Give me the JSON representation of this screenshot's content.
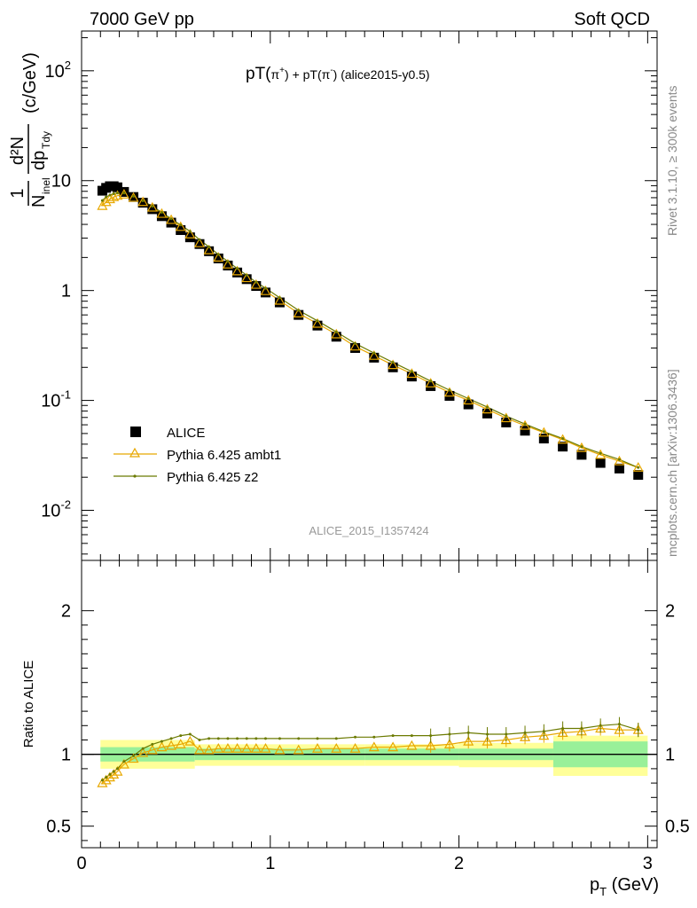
{
  "header": {
    "left": "7000 GeV pp",
    "right": "Soft QCD"
  },
  "side_text": {
    "rivet": "Rivet 3.1.10, ≥ 300k events",
    "mcplots": "mcplots.cern.ch [arXiv:1306.3436]"
  },
  "watermark": "ALICE_2015_I1357424",
  "colors": {
    "alice": "#000000",
    "ambt1": "#e8a800",
    "z2": "#6b7a00",
    "band_stat": "#99f099",
    "band_total": "#ffff99"
  },
  "chart_data": [
    {
      "type": "scatter",
      "title_parts": {
        "pre": "pT(",
        "p1": "π",
        "s1": "+",
        "mid1": ") + pT(",
        "p2": "π",
        "s2": "-",
        "post": ") (alice2015-y0.5)"
      },
      "ylabel": {
        "frac1_num": "1",
        "frac1_den": "N",
        "den_sub": "inel",
        "frac2_num": "d²N",
        "frac2_den": "dp",
        "den2_sub": "Tdy",
        "unit": "(c/GeV)"
      },
      "yscale": "log",
      "ylim": [
        0.0035,
        230
      ],
      "xlim": [
        0,
        3.05
      ],
      "ytick_labels": [
        {
          "base": "10",
          "exp": "-2",
          "value": 0.01
        },
        {
          "base": "10",
          "exp": "-1",
          "value": 0.1
        },
        {
          "base": "1",
          "exp": "",
          "value": 1
        },
        {
          "base": "10",
          "exp": "",
          "value": 10
        },
        {
          "base": "10",
          "exp": "2",
          "value": 100
        }
      ],
      "legend": {
        "placement": "bottom-left",
        "entries": [
          "ALICE",
          "Pythia 6.425 ambt1",
          "Pythia 6.425 z2"
        ]
      },
      "series": [
        {
          "name": "ALICE",
          "marker": "square",
          "x": [
            0.11,
            0.13,
            0.15,
            0.17,
            0.19,
            0.225,
            0.275,
            0.325,
            0.375,
            0.425,
            0.475,
            0.525,
            0.575,
            0.625,
            0.675,
            0.725,
            0.775,
            0.825,
            0.875,
            0.925,
            0.975,
            1.05,
            1.15,
            1.25,
            1.35,
            1.45,
            1.55,
            1.65,
            1.75,
            1.85,
            1.95,
            2.05,
            2.15,
            2.25,
            2.35,
            2.45,
            2.55,
            2.65,
            2.75,
            2.85,
            2.95
          ],
          "y": [
            8.1,
            8.6,
            8.9,
            8.9,
            8.7,
            7.9,
            7.1,
            6.3,
            5.5,
            4.75,
            4.15,
            3.55,
            3.05,
            2.65,
            2.28,
            1.96,
            1.69,
            1.46,
            1.27,
            1.1,
            0.96,
            0.78,
            0.6,
            0.48,
            0.38,
            0.3,
            0.245,
            0.2,
            0.165,
            0.135,
            0.11,
            0.092,
            0.076,
            0.063,
            0.053,
            0.045,
            0.038,
            0.032,
            0.027,
            0.024,
            0.021
          ]
        },
        {
          "name": "Pythia 6.425 ambt1",
          "marker": "triangle",
          "x": [
            0.11,
            0.13,
            0.15,
            0.17,
            0.19,
            0.225,
            0.275,
            0.325,
            0.375,
            0.425,
            0.475,
            0.525,
            0.575,
            0.625,
            0.675,
            0.725,
            0.775,
            0.825,
            0.875,
            0.925,
            0.975,
            1.05,
            1.15,
            1.25,
            1.35,
            1.45,
            1.55,
            1.65,
            1.75,
            1.85,
            1.95,
            2.05,
            2.15,
            2.25,
            2.35,
            2.45,
            2.55,
            2.65,
            2.75,
            2.85,
            2.95
          ],
          "y": [
            5.9,
            6.4,
            6.8,
            7.1,
            7.3,
            7.5,
            7.0,
            6.4,
            5.7,
            5.0,
            4.4,
            3.8,
            3.25,
            2.7,
            2.33,
            2.0,
            1.73,
            1.5,
            1.3,
            1.13,
            0.99,
            0.81,
            0.62,
            0.5,
            0.4,
            0.31,
            0.255,
            0.21,
            0.175,
            0.143,
            0.118,
            0.1,
            0.083,
            0.069,
            0.059,
            0.051,
            0.044,
            0.037,
            0.032,
            0.028,
            0.0245
          ]
        },
        {
          "name": "Pythia 6.425 z2",
          "marker": "dot",
          "x": [
            0.11,
            0.13,
            0.15,
            0.17,
            0.19,
            0.225,
            0.275,
            0.325,
            0.375,
            0.425,
            0.475,
            0.525,
            0.575,
            0.625,
            0.675,
            0.725,
            0.775,
            0.825,
            0.875,
            0.925,
            0.975,
            1.05,
            1.15,
            1.25,
            1.35,
            1.45,
            1.55,
            1.65,
            1.75,
            1.85,
            1.95,
            2.05,
            2.15,
            2.25,
            2.35,
            2.45,
            2.55,
            2.65,
            2.75,
            2.85,
            2.95
          ],
          "y": [
            6.6,
            7.1,
            7.4,
            7.6,
            7.7,
            7.7,
            7.2,
            6.55,
            5.85,
            5.15,
            4.5,
            3.95,
            3.45,
            2.9,
            2.5,
            2.13,
            1.84,
            1.59,
            1.38,
            1.19,
            1.05,
            0.86,
            0.66,
            0.53,
            0.42,
            0.33,
            0.27,
            0.222,
            0.183,
            0.15,
            0.124,
            0.104,
            0.087,
            0.072,
            0.061,
            0.052,
            0.045,
            0.038,
            0.033,
            0.029,
            0.0245
          ]
        }
      ]
    },
    {
      "type": "line",
      "ylabel": "Ratio to ALICE",
      "xlabel": "p",
      "xlabel_sub": "T",
      "xlabel_unit": "(GeV)",
      "ylim": [
        0.35,
        2.35
      ],
      "xlim": [
        0,
        3.05
      ],
      "yticks": [
        0.5,
        1,
        2
      ],
      "ytick_labels": [
        "0.5",
        "1",
        "2"
      ],
      "xticks": [
        0,
        1,
        2,
        3
      ],
      "xtick_labels": [
        "0",
        "1",
        "2",
        "3"
      ],
      "bands": {
        "x_edges": [
          0.1,
          0.6,
          1.5,
          2.0,
          2.5,
          3.0
        ],
        "stat_lo": [
          0.95,
          0.96,
          0.96,
          0.96,
          0.91,
          0.91
        ],
        "stat_hi": [
          1.05,
          1.04,
          1.04,
          1.04,
          1.09,
          1.09
        ],
        "total_lo": [
          0.9,
          0.92,
          0.92,
          0.91,
          0.85,
          0.85
        ],
        "total_hi": [
          1.1,
          1.07,
          1.07,
          1.08,
          1.13,
          1.13
        ]
      },
      "series": [
        {
          "name": "Pythia 6.425 ambt1",
          "x": [
            0.11,
            0.13,
            0.15,
            0.17,
            0.19,
            0.225,
            0.275,
            0.325,
            0.375,
            0.425,
            0.475,
            0.525,
            0.575,
            0.625,
            0.675,
            0.725,
            0.775,
            0.825,
            0.875,
            0.925,
            0.975,
            1.05,
            1.15,
            1.25,
            1.35,
            1.45,
            1.55,
            1.65,
            1.75,
            1.85,
            1.95,
            2.05,
            2.15,
            2.25,
            2.35,
            2.45,
            2.55,
            2.65,
            2.75,
            2.85,
            2.95
          ],
          "y": [
            0.8,
            0.82,
            0.84,
            0.86,
            0.88,
            0.93,
            0.97,
            1.01,
            1.03,
            1.05,
            1.06,
            1.07,
            1.09,
            1.03,
            1.03,
            1.04,
            1.04,
            1.04,
            1.04,
            1.04,
            1.04,
            1.03,
            1.03,
            1.04,
            1.04,
            1.04,
            1.05,
            1.05,
            1.06,
            1.06,
            1.07,
            1.09,
            1.09,
            1.1,
            1.12,
            1.13,
            1.15,
            1.16,
            1.18,
            1.17,
            1.17
          ]
        },
        {
          "name": "Pythia 6.425 z2",
          "x": [
            0.11,
            0.13,
            0.15,
            0.17,
            0.19,
            0.225,
            0.275,
            0.325,
            0.375,
            0.425,
            0.475,
            0.525,
            0.575,
            0.625,
            0.675,
            0.725,
            0.775,
            0.825,
            0.875,
            0.925,
            0.975,
            1.05,
            1.15,
            1.25,
            1.35,
            1.45,
            1.55,
            1.65,
            1.75,
            1.85,
            1.95,
            2.05,
            2.15,
            2.25,
            2.35,
            2.45,
            2.55,
            2.65,
            2.75,
            2.85,
            2.95
          ],
          "y": [
            0.82,
            0.84,
            0.86,
            0.88,
            0.9,
            0.95,
            0.99,
            1.04,
            1.07,
            1.09,
            1.11,
            1.13,
            1.14,
            1.1,
            1.11,
            1.11,
            1.11,
            1.11,
            1.11,
            1.11,
            1.11,
            1.11,
            1.11,
            1.11,
            1.11,
            1.12,
            1.12,
            1.13,
            1.13,
            1.13,
            1.14,
            1.15,
            1.14,
            1.14,
            1.15,
            1.16,
            1.18,
            1.18,
            1.2,
            1.21,
            1.17
          ]
        }
      ]
    }
  ]
}
